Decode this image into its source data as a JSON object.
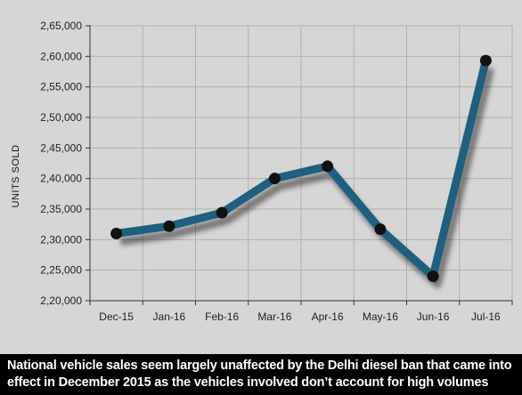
{
  "chart_data": {
    "type": "line",
    "ylabel": "UNITS SOLD",
    "categories": [
      "Dec-15",
      "Jan-16",
      "Feb-16",
      "Mar-16",
      "Apr-16",
      "May-16",
      "Jun-16",
      "Jul-16"
    ],
    "series": [
      {
        "values": [
          231000,
          232200,
          234400,
          240000,
          242000,
          231700,
          224000,
          259300
        ]
      }
    ],
    "ylim": [
      220000,
      265000
    ],
    "yticks": [
      {
        "value": 220000,
        "label": "2,20,000"
      },
      {
        "value": 225000,
        "label": "2,25,000"
      },
      {
        "value": 230000,
        "label": "2,30,000"
      },
      {
        "value": 235000,
        "label": "2,35,000"
      },
      {
        "value": 240000,
        "label": "2,40,000"
      },
      {
        "value": 245000,
        "label": "2,45,000"
      },
      {
        "value": 250000,
        "label": "2,50,000"
      },
      {
        "value": 255000,
        "label": "2,55,000"
      },
      {
        "value": 260000,
        "label": "2,60,000"
      },
      {
        "value": 265000,
        "label": "2,65,000"
      }
    ],
    "grid": true,
    "colors": {
      "line": "#1f5f80",
      "marker": "#111111",
      "background": "#d6d6d6",
      "grid": "#b0b0b0"
    }
  },
  "caption": "National vehicle sales seem largely unaffected by the Delhi diesel ban that came into effect in December 2015 as the vehicles involved don’t account for high volumes"
}
